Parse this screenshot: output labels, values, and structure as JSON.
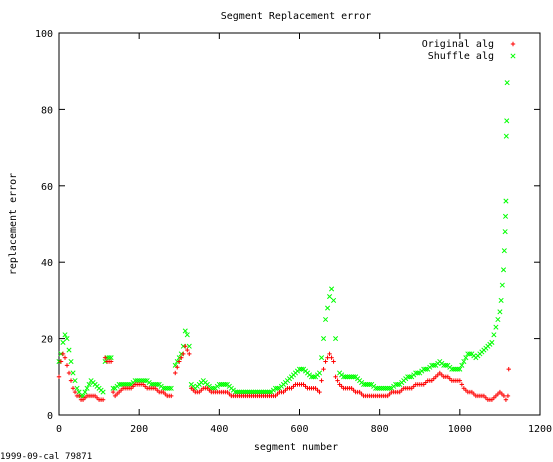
{
  "chart_data": {
    "type": "scatter",
    "title": "Segment Replacement error",
    "xlabel": "segment number",
    "ylabel": "replacement error",
    "xlim": [
      0,
      1200
    ],
    "ylim": [
      0,
      100
    ],
    "xticks": [
      0,
      200,
      400,
      600,
      800,
      1000,
      1200
    ],
    "yticks": [
      0,
      20,
      40,
      60,
      80,
      100
    ],
    "grid": false,
    "legend": "top-right",
    "series": [
      {
        "name": "Original alg",
        "color": "#ff0000",
        "marker": "plus",
        "points": [
          [
            0,
            10
          ],
          [
            5,
            14
          ],
          [
            10,
            16
          ],
          [
            15,
            15
          ],
          [
            20,
            13
          ],
          [
            25,
            11
          ],
          [
            30,
            9
          ],
          [
            35,
            7
          ],
          [
            40,
            6
          ],
          [
            45,
            5
          ],
          [
            50,
            5
          ],
          [
            55,
            4
          ],
          [
            60,
            4
          ],
          [
            70,
            5
          ],
          [
            80,
            5
          ],
          [
            90,
            5
          ],
          [
            100,
            4
          ],
          [
            110,
            4
          ],
          [
            115,
            15
          ],
          [
            120,
            14
          ],
          [
            125,
            14
          ],
          [
            130,
            14
          ],
          [
            135,
            6
          ],
          [
            140,
            5
          ],
          [
            150,
            6
          ],
          [
            160,
            7
          ],
          [
            170,
            7
          ],
          [
            180,
            7
          ],
          [
            190,
            8
          ],
          [
            200,
            8
          ],
          [
            210,
            8
          ],
          [
            220,
            7
          ],
          [
            230,
            7
          ],
          [
            240,
            7
          ],
          [
            250,
            6
          ],
          [
            260,
            6
          ],
          [
            270,
            5
          ],
          [
            280,
            5
          ],
          [
            290,
            11
          ],
          [
            300,
            14
          ],
          [
            305,
            15
          ],
          [
            310,
            16
          ],
          [
            315,
            18
          ],
          [
            320,
            17
          ],
          [
            325,
            16
          ],
          [
            330,
            7
          ],
          [
            340,
            6
          ],
          [
            350,
            6
          ],
          [
            360,
            7
          ],
          [
            370,
            7
          ],
          [
            380,
            6
          ],
          [
            390,
            6
          ],
          [
            400,
            6
          ],
          [
            410,
            6
          ],
          [
            420,
            6
          ],
          [
            430,
            5
          ],
          [
            440,
            5
          ],
          [
            450,
            5
          ],
          [
            460,
            5
          ],
          [
            470,
            5
          ],
          [
            480,
            5
          ],
          [
            490,
            5
          ],
          [
            500,
            5
          ],
          [
            510,
            5
          ],
          [
            520,
            5
          ],
          [
            530,
            5
          ],
          [
            540,
            5
          ],
          [
            550,
            6
          ],
          [
            560,
            6
          ],
          [
            570,
            7
          ],
          [
            580,
            7
          ],
          [
            590,
            8
          ],
          [
            600,
            8
          ],
          [
            610,
            8
          ],
          [
            620,
            7
          ],
          [
            630,
            7
          ],
          [
            640,
            7
          ],
          [
            650,
            6
          ],
          [
            655,
            9
          ],
          [
            660,
            12
          ],
          [
            665,
            14
          ],
          [
            670,
            15
          ],
          [
            675,
            16
          ],
          [
            680,
            15
          ],
          [
            685,
            14
          ],
          [
            690,
            10
          ],
          [
            700,
            8
          ],
          [
            710,
            7
          ],
          [
            720,
            7
          ],
          [
            730,
            7
          ],
          [
            740,
            6
          ],
          [
            750,
            6
          ],
          [
            760,
            5
          ],
          [
            770,
            5
          ],
          [
            780,
            5
          ],
          [
            790,
            5
          ],
          [
            800,
            5
          ],
          [
            810,
            5
          ],
          [
            820,
            5
          ],
          [
            830,
            6
          ],
          [
            840,
            6
          ],
          [
            850,
            6
          ],
          [
            860,
            7
          ],
          [
            870,
            7
          ],
          [
            880,
            7
          ],
          [
            890,
            8
          ],
          [
            900,
            8
          ],
          [
            910,
            8
          ],
          [
            920,
            9
          ],
          [
            930,
            9
          ],
          [
            940,
            10
          ],
          [
            950,
            11
          ],
          [
            960,
            10
          ],
          [
            970,
            10
          ],
          [
            980,
            9
          ],
          [
            990,
            9
          ],
          [
            1000,
            9
          ],
          [
            1010,
            7
          ],
          [
            1020,
            6
          ],
          [
            1030,
            6
          ],
          [
            1040,
            5
          ],
          [
            1050,
            5
          ],
          [
            1060,
            5
          ],
          [
            1070,
            4
          ],
          [
            1080,
            4
          ],
          [
            1090,
            5
          ],
          [
            1100,
            6
          ],
          [
            1110,
            5
          ],
          [
            1115,
            4
          ],
          [
            1120,
            5
          ],
          [
            1122,
            12
          ]
        ]
      },
      {
        "name": "Shuffle alg",
        "color": "#00ff00",
        "marker": "cross",
        "points": [
          [
            0,
            14
          ],
          [
            5,
            16
          ],
          [
            10,
            19
          ],
          [
            15,
            21
          ],
          [
            20,
            20
          ],
          [
            25,
            17
          ],
          [
            30,
            14
          ],
          [
            35,
            11
          ],
          [
            40,
            9
          ],
          [
            45,
            7
          ],
          [
            50,
            6
          ],
          [
            55,
            5
          ],
          [
            60,
            5
          ],
          [
            70,
            7
          ],
          [
            80,
            9
          ],
          [
            90,
            8
          ],
          [
            100,
            7
          ],
          [
            110,
            6
          ],
          [
            115,
            14
          ],
          [
            120,
            15
          ],
          [
            125,
            15
          ],
          [
            130,
            15
          ],
          [
            135,
            7
          ],
          [
            140,
            7
          ],
          [
            150,
            8
          ],
          [
            160,
            8
          ],
          [
            170,
            8
          ],
          [
            180,
            8
          ],
          [
            190,
            9
          ],
          [
            200,
            9
          ],
          [
            210,
            9
          ],
          [
            220,
            9
          ],
          [
            230,
            8
          ],
          [
            240,
            8
          ],
          [
            250,
            8
          ],
          [
            260,
            7
          ],
          [
            270,
            7
          ],
          [
            280,
            7
          ],
          [
            290,
            13
          ],
          [
            300,
            15
          ],
          [
            305,
            16
          ],
          [
            310,
            18
          ],
          [
            315,
            22
          ],
          [
            320,
            21
          ],
          [
            325,
            18
          ],
          [
            330,
            8
          ],
          [
            340,
            7
          ],
          [
            350,
            8
          ],
          [
            360,
            9
          ],
          [
            370,
            8
          ],
          [
            380,
            7
          ],
          [
            390,
            7
          ],
          [
            400,
            8
          ],
          [
            410,
            8
          ],
          [
            420,
            8
          ],
          [
            430,
            7
          ],
          [
            440,
            6
          ],
          [
            450,
            6
          ],
          [
            460,
            6
          ],
          [
            470,
            6
          ],
          [
            480,
            6
          ],
          [
            490,
            6
          ],
          [
            500,
            6
          ],
          [
            510,
            6
          ],
          [
            520,
            6
          ],
          [
            530,
            6
          ],
          [
            540,
            7
          ],
          [
            550,
            7
          ],
          [
            560,
            8
          ],
          [
            570,
            9
          ],
          [
            580,
            10
          ],
          [
            590,
            11
          ],
          [
            600,
            12
          ],
          [
            610,
            12
          ],
          [
            620,
            11
          ],
          [
            630,
            10
          ],
          [
            640,
            10
          ],
          [
            650,
            11
          ],
          [
            655,
            15
          ],
          [
            660,
            20
          ],
          [
            665,
            25
          ],
          [
            670,
            28
          ],
          [
            675,
            31
          ],
          [
            680,
            33
          ],
          [
            685,
            30
          ],
          [
            690,
            20
          ],
          [
            700,
            11
          ],
          [
            710,
            10
          ],
          [
            720,
            10
          ],
          [
            730,
            10
          ],
          [
            740,
            10
          ],
          [
            750,
            9
          ],
          [
            760,
            8
          ],
          [
            770,
            8
          ],
          [
            780,
            8
          ],
          [
            790,
            7
          ],
          [
            800,
            7
          ],
          [
            810,
            7
          ],
          [
            820,
            7
          ],
          [
            830,
            7
          ],
          [
            840,
            8
          ],
          [
            850,
            8
          ],
          [
            860,
            9
          ],
          [
            870,
            10
          ],
          [
            880,
            10
          ],
          [
            890,
            11
          ],
          [
            900,
            11
          ],
          [
            910,
            12
          ],
          [
            920,
            12
          ],
          [
            930,
            13
          ],
          [
            940,
            13
          ],
          [
            950,
            14
          ],
          [
            960,
            13
          ],
          [
            970,
            13
          ],
          [
            980,
            12
          ],
          [
            990,
            12
          ],
          [
            1000,
            12
          ],
          [
            1010,
            14
          ],
          [
            1020,
            16
          ],
          [
            1030,
            16
          ],
          [
            1040,
            15
          ],
          [
            1050,
            16
          ],
          [
            1060,
            17
          ],
          [
            1070,
            18
          ],
          [
            1080,
            19
          ],
          [
            1085,
            21
          ],
          [
            1090,
            23
          ],
          [
            1095,
            25
          ],
          [
            1100,
            27
          ],
          [
            1103,
            30
          ],
          [
            1106,
            34
          ],
          [
            1109,
            38
          ],
          [
            1111,
            43
          ],
          [
            1113,
            48
          ],
          [
            1114,
            52
          ],
          [
            1115,
            56
          ],
          [
            1116,
            73
          ],
          [
            1117,
            77
          ],
          [
            1118,
            87
          ]
        ]
      }
    ]
  },
  "footer_text": "1999-09-cal 79871"
}
